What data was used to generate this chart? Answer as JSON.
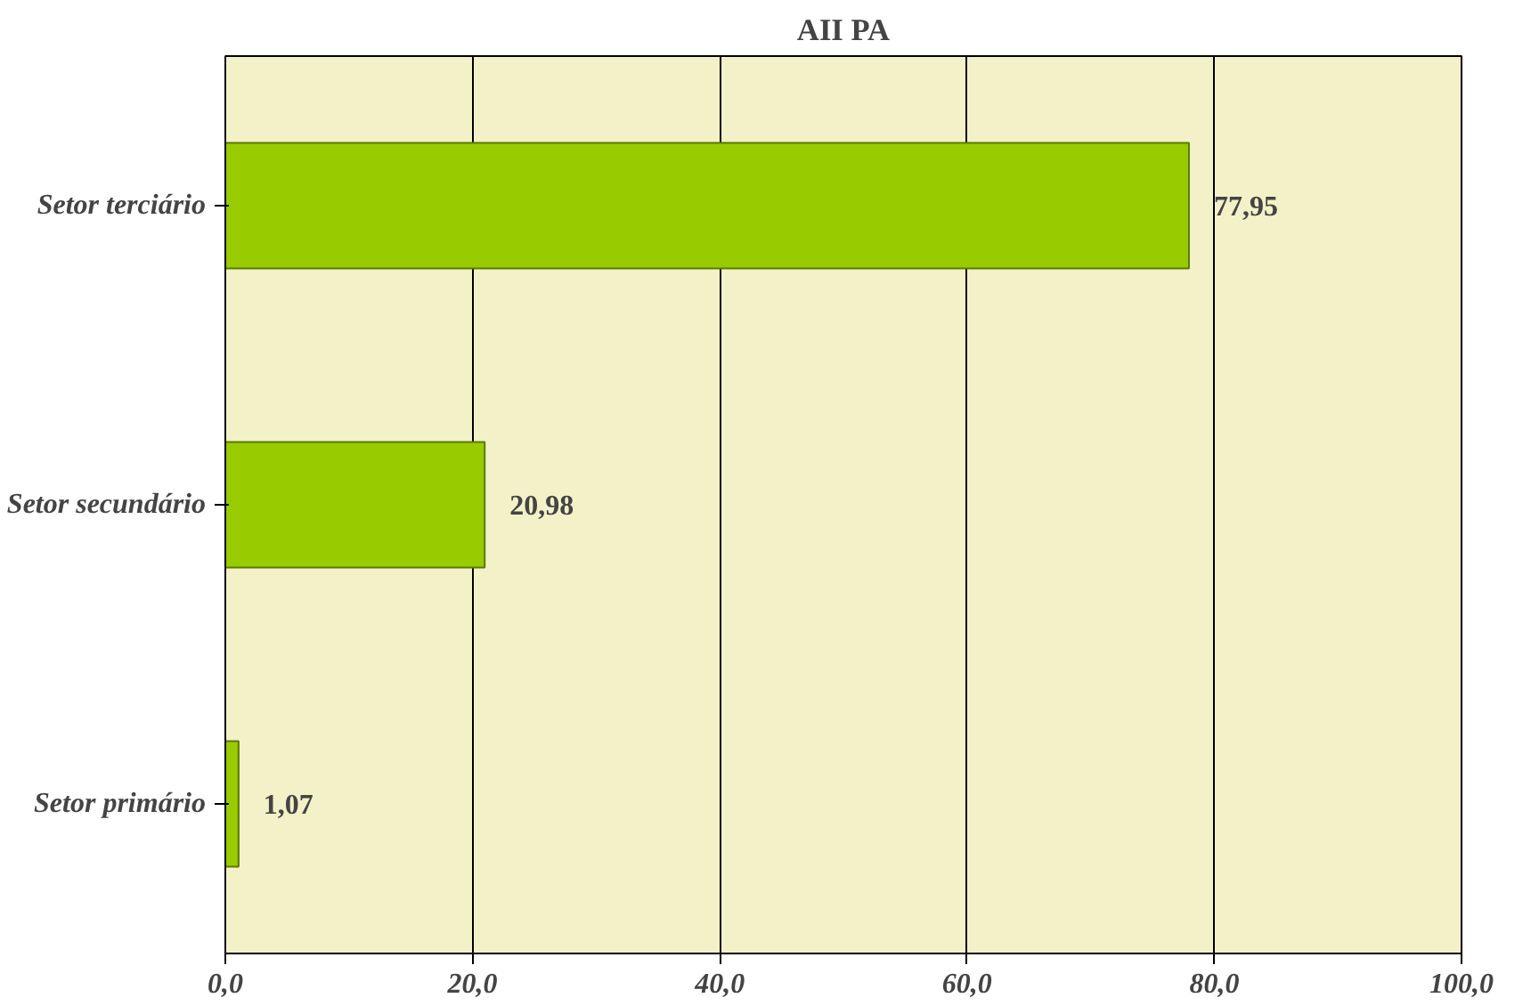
{
  "chart_data": {
    "type": "bar",
    "orientation": "horizontal",
    "title": "AII PA",
    "categories": [
      "Setor terciário",
      "Setor secundário",
      "Setor primário"
    ],
    "values": [
      77.95,
      20.98,
      1.07
    ],
    "value_labels": [
      "77,95",
      "20,98",
      "1,07"
    ],
    "color": "#99cc00",
    "xlim": [
      0,
      100
    ],
    "xticks": [
      {
        "value": 0,
        "label": "0,0"
      },
      {
        "value": 20,
        "label": "20,0"
      },
      {
        "value": 40,
        "label": "40,0"
      },
      {
        "value": 60,
        "label": "60,0"
      },
      {
        "value": 80,
        "label": "80,0"
      },
      {
        "value": 100,
        "label": "100,0"
      }
    ],
    "grid": "x"
  }
}
